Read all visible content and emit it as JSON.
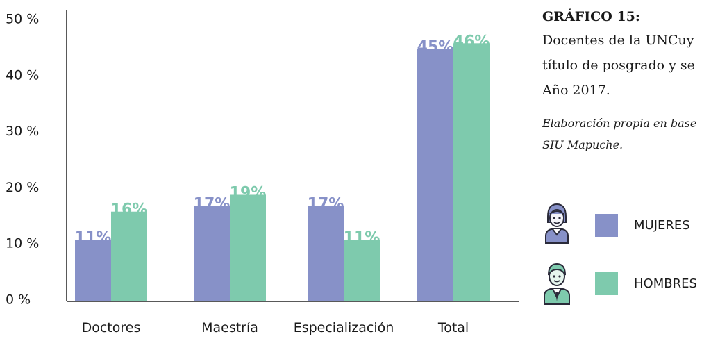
{
  "caption": {
    "title": "GRÁFICO 15:",
    "lines": [
      "Docentes de la UNCuy",
      "título de posgrado y se",
      "Año 2017."
    ],
    "source_lines": [
      "Elaboración propia en base",
      "SIU Mapuche."
    ]
  },
  "legend": [
    {
      "label": "MUJERES",
      "color": "#8791c8",
      "icon": "woman-icon"
    },
    {
      "label": "HOMBRES",
      "color": "#7ecaad",
      "icon": "man-icon"
    }
  ],
  "chart_data": {
    "type": "bar",
    "categories": [
      "Doctores",
      "Maestría",
      "Especialización",
      "Total"
    ],
    "series": [
      {
        "name": "MUJERES",
        "values": [
          11,
          17,
          17,
          45
        ],
        "labels": [
          "11%",
          "17%",
          "17%",
          "45%"
        ],
        "color": "#8791c8"
      },
      {
        "name": "HOMBRES",
        "values": [
          16,
          19,
          11,
          46
        ],
        "labels": [
          "16%",
          "19%",
          "11%",
          "46%"
        ],
        "color": "#7ecaad"
      }
    ],
    "yticks": [
      "0 %",
      "10 %",
      "20 %",
      "30 %",
      "40 %",
      "50 %"
    ],
    "ylim": [
      0,
      50
    ],
    "grid": false
  }
}
